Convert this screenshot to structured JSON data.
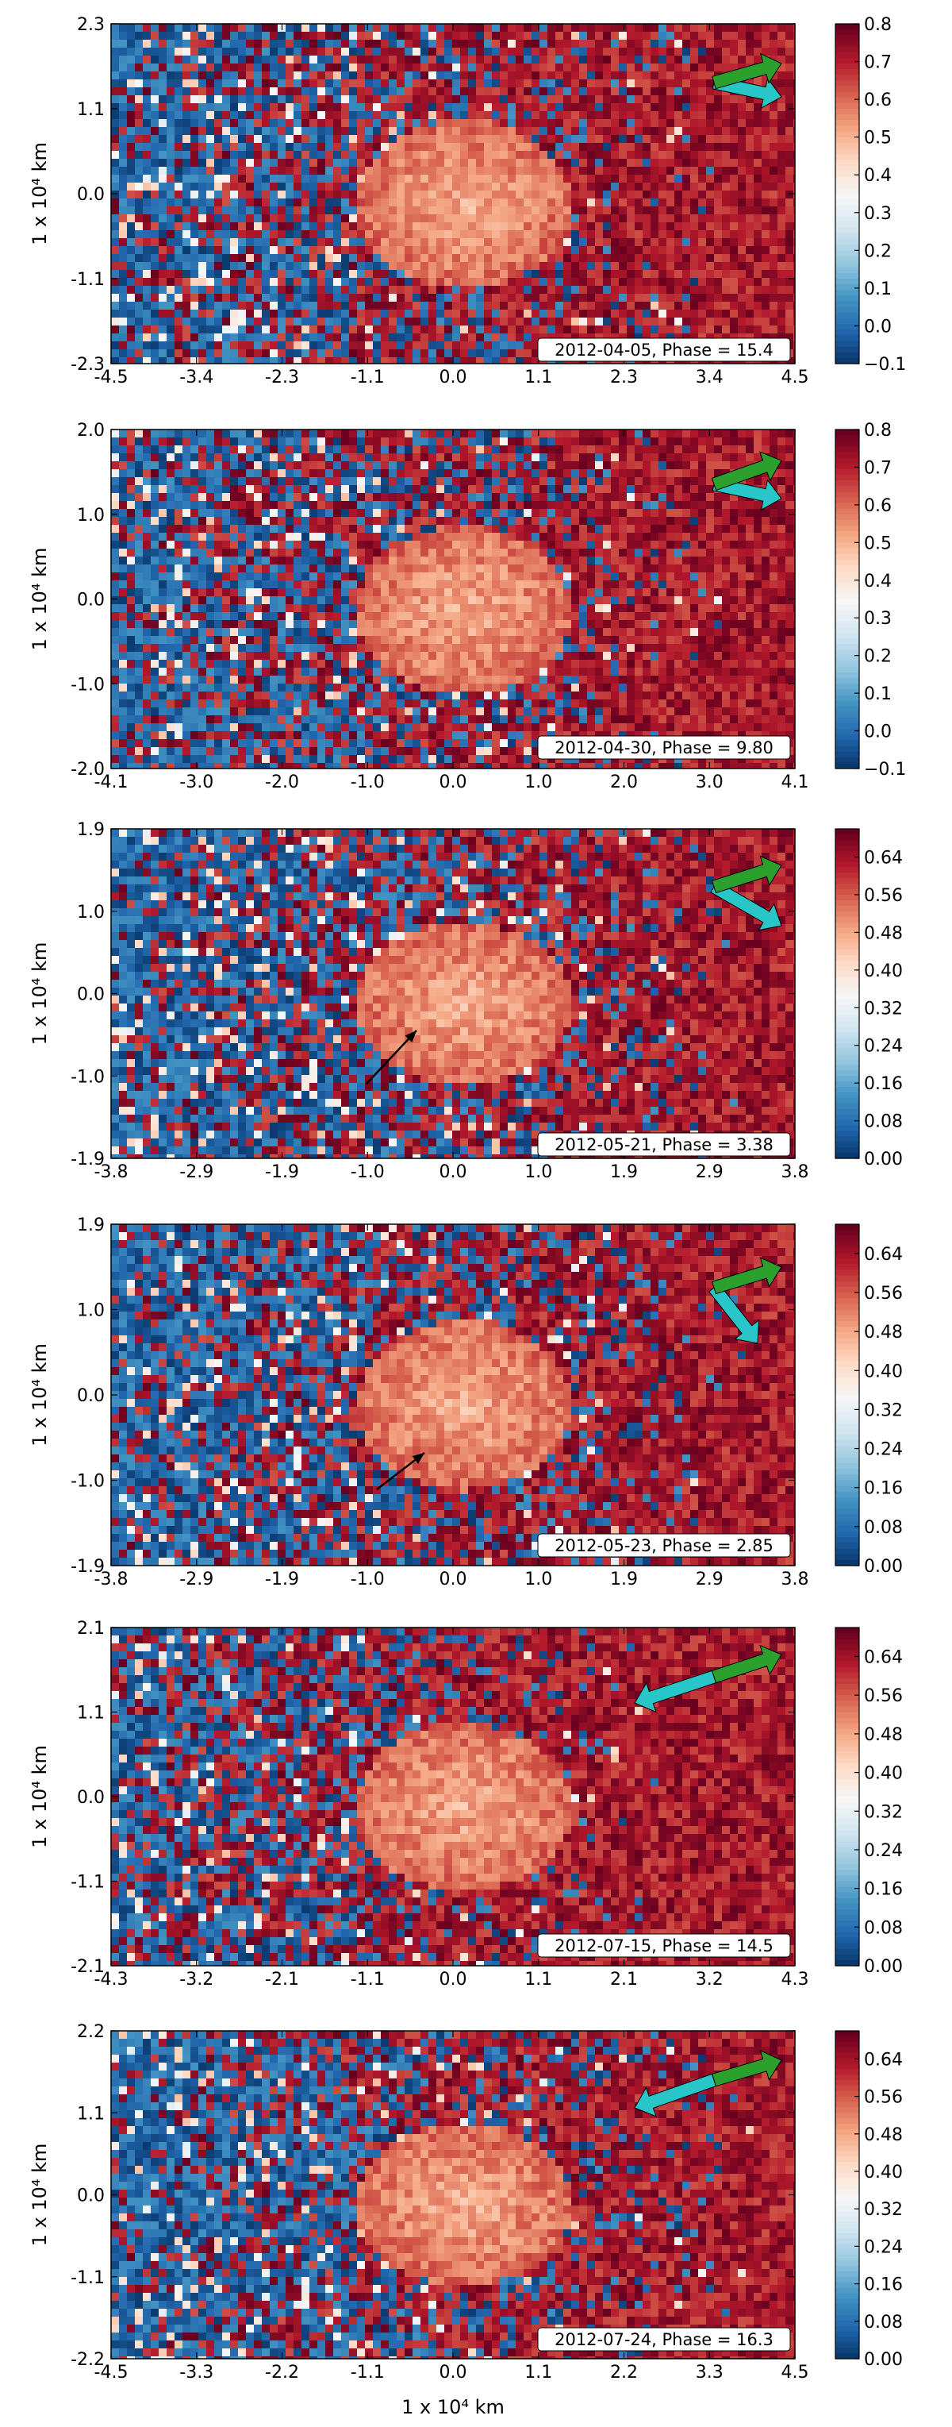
{
  "figure": {
    "xlabel": "1 x 10⁴ km",
    "ylabel": "1 x 10⁴ km"
  },
  "chart_data": [
    {
      "type": "heatmap",
      "annotation": "2012-04-05, Phase = 15.4",
      "xticks": [
        "-4.5",
        "-3.4",
        "-2.3",
        "-1.1",
        "0.0",
        "1.1",
        "2.3",
        "3.4",
        "4.5"
      ],
      "yticks": [
        "2.3",
        "1.1",
        "0.0",
        "-1.1",
        "-2.3"
      ],
      "xlim": [
        -4.5,
        4.5
      ],
      "ylim": [
        -2.3,
        2.3
      ],
      "colorbar_ticks": [
        "0.8",
        "0.7",
        "0.6",
        "0.5",
        "0.4",
        "0.3",
        "0.2",
        "0.1",
        "0.0",
        "−0.1"
      ],
      "colorbar_range": [
        -0.1,
        0.8
      ],
      "colormap": "RdBu_r",
      "colors": {
        "arrow_sun": "#2ca02c",
        "arrow_velocity": "#29c6c9"
      }
    },
    {
      "type": "heatmap",
      "annotation": "2012-04-30, Phase = 9.80",
      "xticks": [
        "-4.1",
        "-3.0",
        "-2.0",
        "-1.0",
        "0.0",
        "1.0",
        "2.0",
        "3.0",
        "4.1"
      ],
      "yticks": [
        "2.0",
        "1.0",
        "0.0",
        "-1.0",
        "-2.0"
      ],
      "xlim": [
        -4.1,
        4.1
      ],
      "ylim": [
        -2.0,
        2.0
      ],
      "colorbar_ticks": [
        "0.8",
        "0.7",
        "0.6",
        "0.5",
        "0.4",
        "0.3",
        "0.2",
        "0.1",
        "0.0",
        "−0.1"
      ],
      "colorbar_range": [
        -0.1,
        0.8
      ],
      "colormap": "RdBu_r"
    },
    {
      "type": "heatmap",
      "annotation": "2012-05-21, Phase = 3.38",
      "xticks": [
        "-3.8",
        "-2.9",
        "-1.9",
        "-1.0",
        "0.0",
        "1.0",
        "1.9",
        "2.9",
        "3.8"
      ],
      "yticks": [
        "1.9",
        "1.0",
        "0.0",
        "-1.0",
        "-1.9"
      ],
      "xlim": [
        -3.8,
        3.8
      ],
      "ylim": [
        -1.9,
        1.9
      ],
      "colorbar_ticks": [
        "0.64",
        "0.56",
        "0.48",
        "0.40",
        "0.32",
        "0.24",
        "0.16",
        "0.08",
        "0.00"
      ],
      "colorbar_range": [
        0.0,
        0.7
      ],
      "colormap": "RdBu_r"
    },
    {
      "type": "heatmap",
      "annotation": "2012-05-23, Phase = 2.85",
      "xticks": [
        "-3.8",
        "-2.9",
        "-1.9",
        "-1.0",
        "0.0",
        "1.0",
        "1.9",
        "2.9",
        "3.8"
      ],
      "yticks": [
        "1.9",
        "1.0",
        "0.0",
        "-1.0",
        "-1.9"
      ],
      "xlim": [
        -3.8,
        3.8
      ],
      "ylim": [
        -1.9,
        1.9
      ],
      "colorbar_ticks": [
        "0.64",
        "0.56",
        "0.48",
        "0.40",
        "0.32",
        "0.24",
        "0.16",
        "0.08",
        "0.00"
      ],
      "colorbar_range": [
        0.0,
        0.7
      ],
      "colormap": "RdBu_r"
    },
    {
      "type": "heatmap",
      "annotation": "2012-07-15, Phase = 14.5",
      "xticks": [
        "-4.3",
        "-3.2",
        "-2.1",
        "-1.1",
        "0.0",
        "1.1",
        "2.1",
        "3.2",
        "4.3"
      ],
      "yticks": [
        "2.1",
        "1.1",
        "0.0",
        "-1.1",
        "-2.1"
      ],
      "xlim": [
        -4.3,
        4.3
      ],
      "ylim": [
        -2.1,
        2.1
      ],
      "colorbar_ticks": [
        "0.64",
        "0.56",
        "0.48",
        "0.40",
        "0.32",
        "0.24",
        "0.16",
        "0.08",
        "0.00"
      ],
      "colorbar_range": [
        0.0,
        0.7
      ],
      "colormap": "RdBu_r"
    },
    {
      "type": "heatmap",
      "annotation": "2012-07-24, Phase = 16.3",
      "xticks": [
        "-4.5",
        "-3.3",
        "-2.2",
        "-1.1",
        "0.0",
        "1.1",
        "2.2",
        "3.3",
        "4.5"
      ],
      "yticks": [
        "2.2",
        "1.1",
        "0.0",
        "-1.1",
        "-2.2"
      ],
      "xlim": [
        -4.5,
        4.5
      ],
      "ylim": [
        -2.2,
        2.2
      ],
      "colorbar_ticks": [
        "0.64",
        "0.56",
        "0.48",
        "0.40",
        "0.32",
        "0.24",
        "0.16",
        "0.08",
        "0.00"
      ],
      "colorbar_range": [
        0.0,
        0.7
      ],
      "colormap": "RdBu_r"
    }
  ]
}
